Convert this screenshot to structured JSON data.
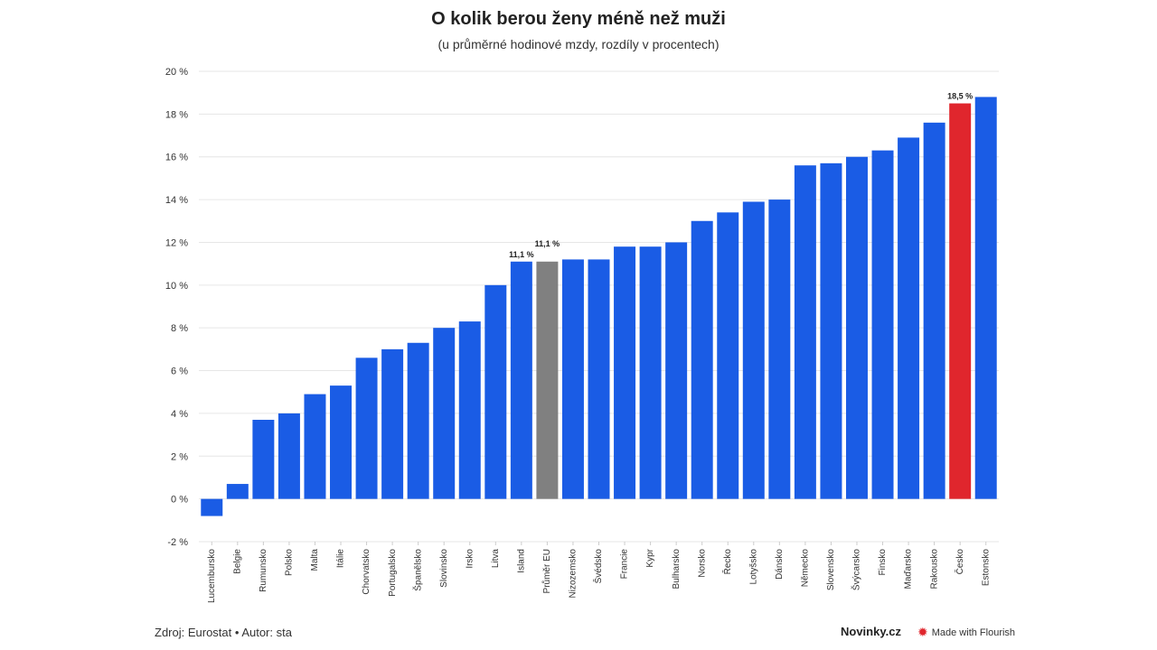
{
  "chart_data": {
    "type": "bar",
    "title": "O kolik berou ženy méně než muži",
    "subtitle": "(u průměrné hodinové mzdy, rozdíly v procentech)",
    "ylim": [
      -2,
      20
    ],
    "yticks": [
      "-2 %",
      "0 %",
      "2 %",
      "4 %",
      "6 %",
      "8 %",
      "10 %",
      "12 %",
      "14 %",
      "16 %",
      "18 %",
      "20 %"
    ],
    "grid": true,
    "categories": [
      "Lucembursko",
      "Belgie",
      "Rumunsko",
      "Polsko",
      "Malta",
      "Itálie",
      "Chorvatsko",
      "Portugalsko",
      "Španělsko",
      "Slovinsko",
      "Irsko",
      "Litva",
      "Island",
      "Průměr EU",
      "Nizozemsko",
      "Švédsko",
      "Francie",
      "Kypr",
      "Bulharsko",
      "Norsko",
      "Řecko",
      "Lotyšsko",
      "Dánsko",
      "Německo",
      "Slovensko",
      "Švýcarsko",
      "Finsko",
      "Maďarsko",
      "Rakousko",
      "Česko",
      "Estonsko"
    ],
    "values": [
      -0.8,
      0.7,
      3.7,
      4.0,
      4.9,
      5.3,
      6.6,
      7.0,
      7.3,
      8.0,
      8.3,
      10.0,
      11.1,
      11.1,
      11.2,
      11.2,
      11.8,
      11.8,
      12.0,
      13.0,
      13.4,
      13.9,
      14.0,
      15.6,
      15.7,
      16.0,
      16.3,
      16.9,
      17.6,
      18.5,
      18.8
    ],
    "data_labels": {
      "Island": "11,1 %",
      "Průměr EU": "11,1 %",
      "Česko": "18,5 %"
    },
    "colors": {
      "default": "#1a5ce5",
      "Průměr EU": "#808080",
      "Česko": "#e0262d"
    }
  },
  "footer": {
    "source": "Zdroj: Eurostat • Autor: sta",
    "brand": "Novinky.cz",
    "flourish": "Made with Flourish"
  }
}
